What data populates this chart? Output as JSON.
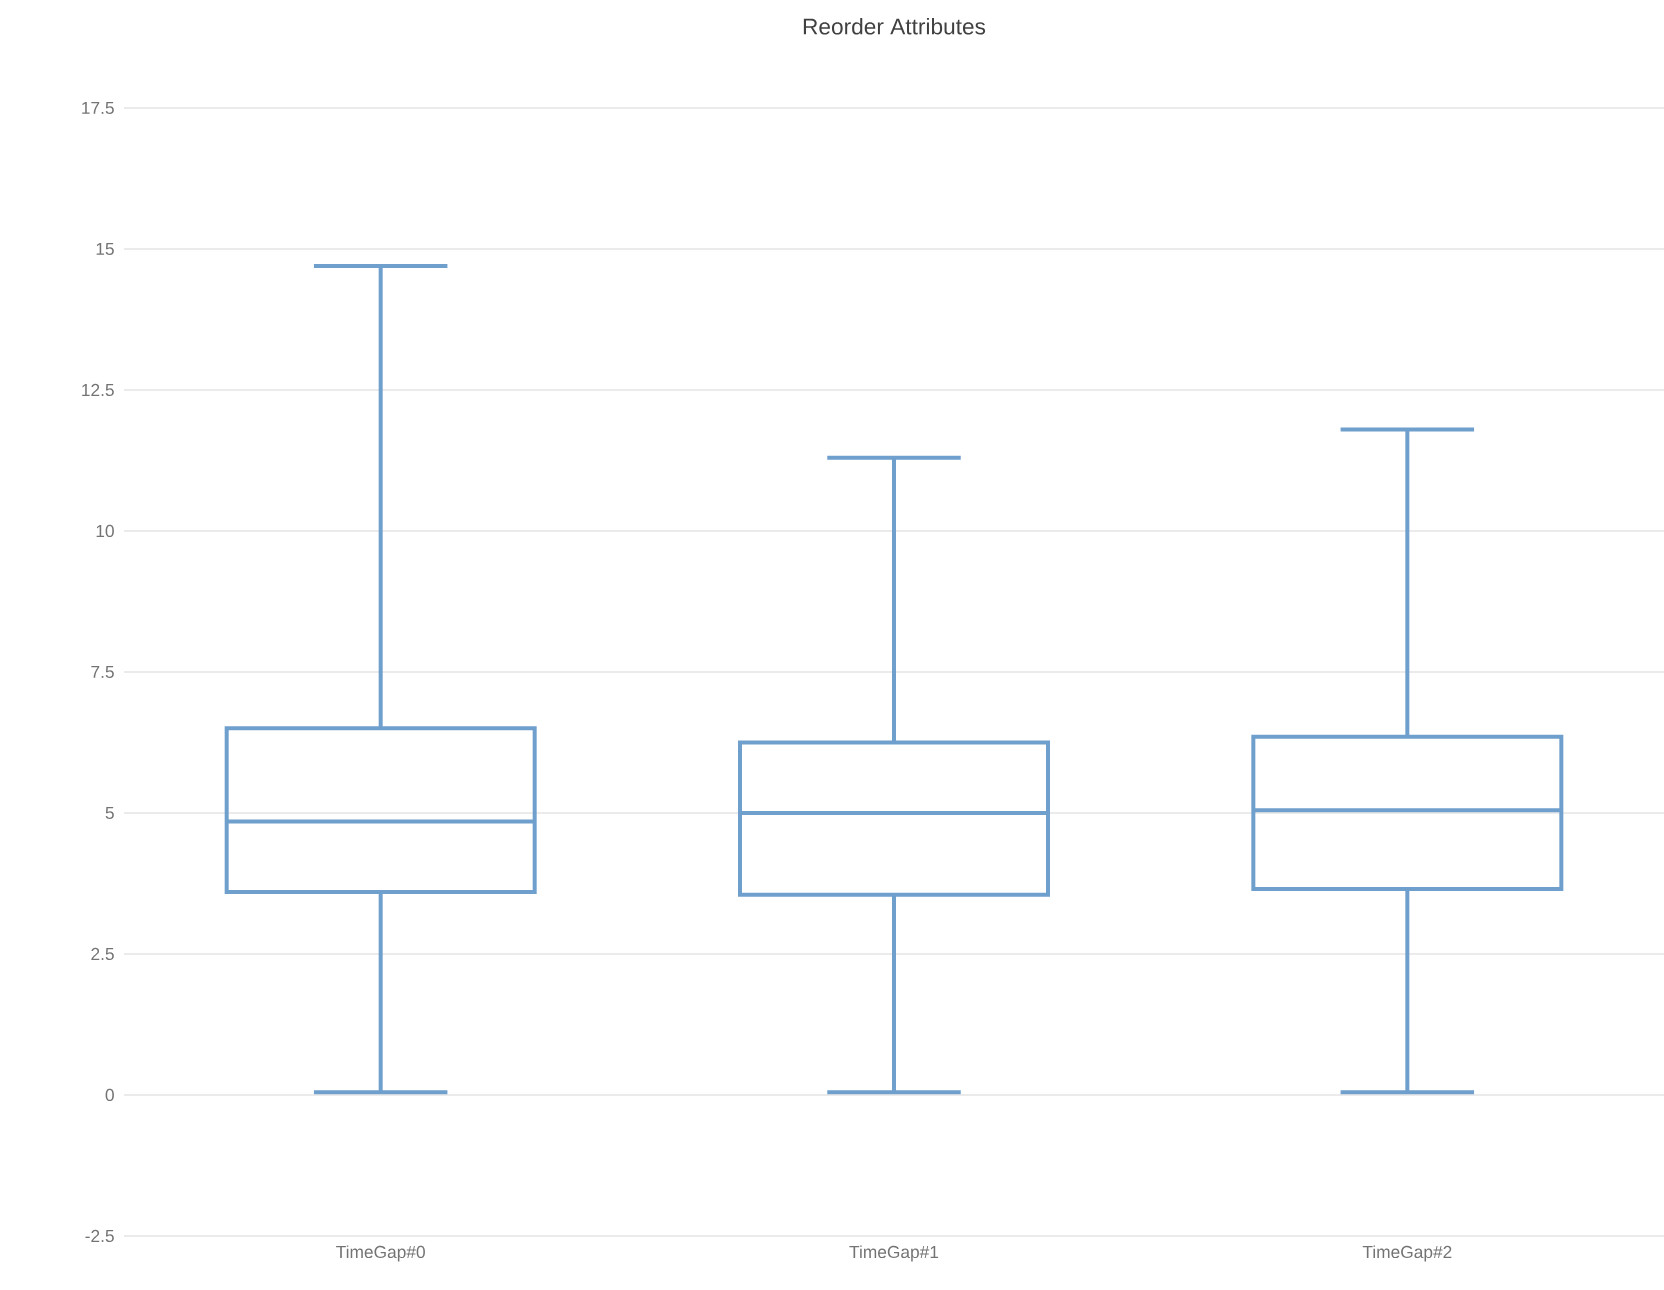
{
  "chart_data": {
    "type": "box",
    "title": "Reorder Attributes",
    "categories": [
      "TimeGap#0",
      "TimeGap#1",
      "TimeGap#2"
    ],
    "series": [
      {
        "color": "#6f9fcc",
        "boxes": [
          {
            "low": 0.05,
            "q1": 3.6,
            "median": 4.85,
            "q3": 6.5,
            "high": 14.7
          },
          {
            "low": 0.05,
            "q1": 3.55,
            "median": 5.0,
            "q3": 6.25,
            "high": 11.3
          },
          {
            "low": 0.05,
            "q1": 3.65,
            "median": 5.05,
            "q3": 6.35,
            "high": 11.8
          }
        ]
      }
    ],
    "ylim": [
      -2.5,
      17.5
    ],
    "yticks": [
      -2.5,
      0,
      2.5,
      5,
      7.5,
      10,
      12.5,
      15,
      17.5
    ],
    "grid": "y"
  }
}
